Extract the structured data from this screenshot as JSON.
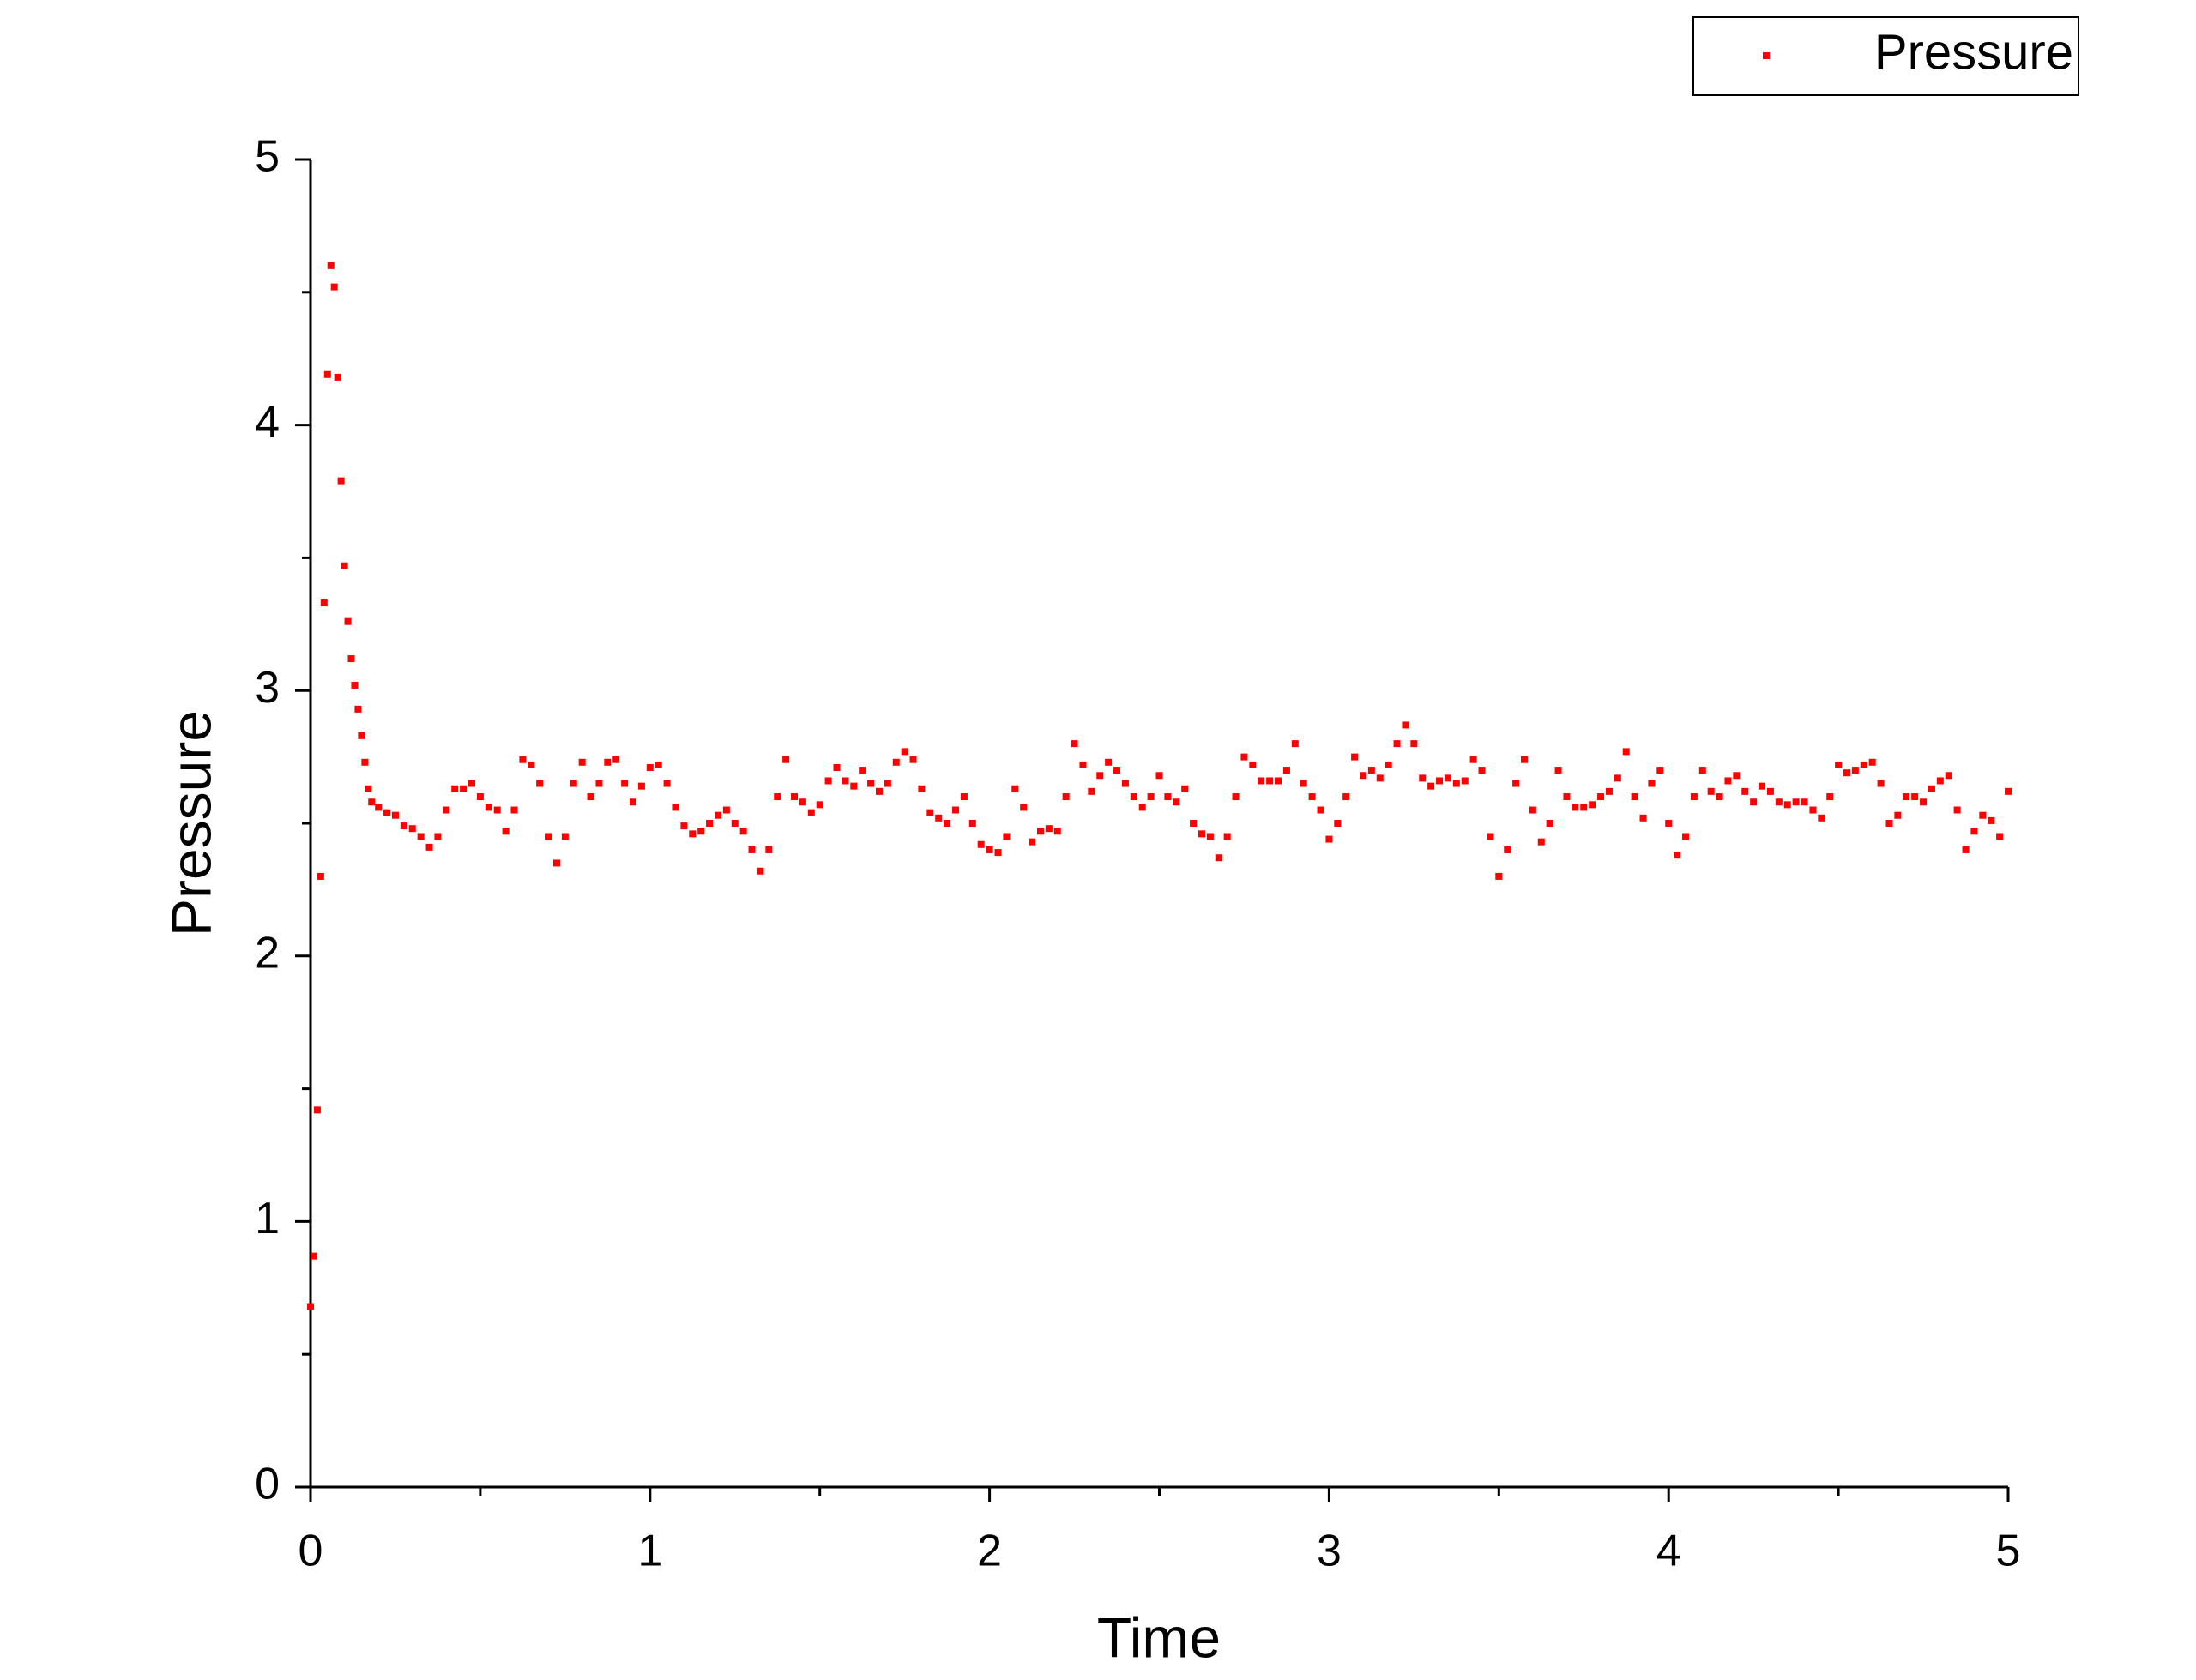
{
  "chart_data": {
    "type": "scatter",
    "x_label": "Time",
    "y_label": "Pressure",
    "xlim": [
      0,
      5
    ],
    "ylim": [
      0,
      5
    ],
    "xticks": [
      0,
      1,
      2,
      3,
      4,
      5
    ],
    "yticks": [
      0,
      1,
      2,
      3,
      4,
      5
    ],
    "minor_xticks": [
      0.5,
      1.5,
      2.5,
      3.5,
      4.5
    ],
    "minor_yticks": [
      0.5,
      1.5,
      2.5,
      3.5,
      4.5
    ],
    "legend": "top-right",
    "series": [
      {
        "name": "Pressure",
        "color": "#ff0000",
        "x": [
          0,
          0.01,
          0.02,
          0.03,
          0.04,
          0.05,
          0.06,
          0.07,
          0.08,
          0.09,
          0.1,
          0.11,
          0.12,
          0.13,
          0.14,
          0.15,
          0.16,
          0.17,
          0.18,
          0.2,
          0.225,
          0.25,
          0.275,
          0.3,
          0.325,
          0.35,
          0.375,
          0.4,
          0.425,
          0.45,
          0.475,
          0.5,
          0.525,
          0.55,
          0.575,
          0.6,
          0.625,
          0.65,
          0.675,
          0.7,
          0.725,
          0.75,
          0.775,
          0.8,
          0.825,
          0.85,
          0.875,
          0.9,
          0.925,
          0.95,
          0.975,
          1.0,
          1.025,
          1.05,
          1.075,
          1.1,
          1.125,
          1.15,
          1.175,
          1.2,
          1.225,
          1.25,
          1.275,
          1.3,
          1.325,
          1.35,
          1.375,
          1.4,
          1.425,
          1.45,
          1.475,
          1.5,
          1.525,
          1.55,
          1.575,
          1.6,
          1.625,
          1.65,
          1.675,
          1.7,
          1.725,
          1.75,
          1.775,
          1.8,
          1.825,
          1.85,
          1.875,
          1.9,
          1.925,
          1.95,
          1.975,
          2.0,
          2.025,
          2.05,
          2.075,
          2.1,
          2.125,
          2.15,
          2.175,
          2.2,
          2.225,
          2.25,
          2.275,
          2.3,
          2.325,
          2.35,
          2.375,
          2.4,
          2.425,
          2.45,
          2.475,
          2.5,
          2.525,
          2.55,
          2.575,
          2.6,
          2.625,
          2.65,
          2.675,
          2.7,
          2.725,
          2.75,
          2.775,
          2.8,
          2.825,
          2.85,
          2.875,
          2.9,
          2.925,
          2.95,
          2.975,
          3.0,
          3.025,
          3.05,
          3.075,
          3.1,
          3.125,
          3.15,
          3.175,
          3.2,
          3.225,
          3.25,
          3.275,
          3.3,
          3.325,
          3.35,
          3.375,
          3.4,
          3.425,
          3.45,
          3.475,
          3.5,
          3.525,
          3.55,
          3.575,
          3.6,
          3.625,
          3.65,
          3.675,
          3.7,
          3.725,
          3.75,
          3.775,
          3.8,
          3.825,
          3.85,
          3.875,
          3.9,
          3.925,
          3.95,
          3.975,
          4.0,
          4.025,
          4.05,
          4.075,
          4.1,
          4.125,
          4.15,
          4.175,
          4.2,
          4.225,
          4.25,
          4.275,
          4.3,
          4.325,
          4.35,
          4.375,
          4.4,
          4.425,
          4.45,
          4.475,
          4.5,
          4.525,
          4.55,
          4.575,
          4.6,
          4.625,
          4.65,
          4.675,
          4.7,
          4.725,
          4.75,
          4.775,
          4.8,
          4.825,
          4.85,
          4.875,
          4.9,
          4.925,
          4.95,
          4.975,
          5.0
        ],
        "values": [
          0.68,
          0.87,
          1.42,
          2.3,
          3.33,
          4.19,
          4.6,
          4.52,
          4.18,
          3.79,
          3.47,
          3.26,
          3.12,
          3.02,
          2.93,
          2.83,
          2.73,
          2.63,
          2.58,
          2.56,
          2.54,
          2.53,
          2.49,
          2.48,
          2.45,
          2.41,
          2.45,
          2.55,
          2.63,
          2.63,
          2.65,
          2.6,
          2.56,
          2.55,
          2.47,
          2.55,
          2.74,
          2.72,
          2.65,
          2.45,
          2.35,
          2.45,
          2.65,
          2.73,
          2.6,
          2.65,
          2.73,
          2.74,
          2.65,
          2.58,
          2.64,
          2.71,
          2.72,
          2.65,
          2.56,
          2.49,
          2.46,
          2.47,
          2.5,
          2.53,
          2.55,
          2.5,
          2.47,
          2.4,
          2.32,
          2.4,
          2.6,
          2.74,
          2.6,
          2.58,
          2.54,
          2.57,
          2.66,
          2.71,
          2.66,
          2.64,
          2.7,
          2.65,
          2.62,
          2.65,
          2.73,
          2.77,
          2.74,
          2.63,
          2.54,
          2.52,
          2.5,
          2.55,
          2.6,
          2.5,
          2.42,
          2.4,
          2.39,
          2.45,
          2.63,
          2.56,
          2.43,
          2.47,
          2.48,
          2.47,
          2.6,
          2.8,
          2.72,
          2.62,
          2.68,
          2.73,
          2.7,
          2.65,
          2.6,
          2.56,
          2.6,
          2.68,
          2.6,
          2.58,
          2.63,
          2.5,
          2.46,
          2.45,
          2.37,
          2.45,
          2.6,
          2.75,
          2.72,
          2.66,
          2.66,
          2.66,
          2.7,
          2.8,
          2.65,
          2.6,
          2.55,
          2.44,
          2.5,
          2.6,
          2.75,
          2.68,
          2.7,
          2.67,
          2.72,
          2.8,
          2.87,
          2.8,
          2.67,
          2.64,
          2.66,
          2.67,
          2.65,
          2.66,
          2.74,
          2.7,
          2.45,
          2.3,
          2.4,
          2.65,
          2.74,
          2.55,
          2.43,
          2.5,
          2.7,
          2.6,
          2.56,
          2.56,
          2.57,
          2.6,
          2.62,
          2.67,
          2.77,
          2.6,
          2.52,
          2.65,
          2.7,
          2.5,
          2.38,
          2.45,
          2.6,
          2.7,
          2.62,
          2.6,
          2.66,
          2.68,
          2.62,
          2.58,
          2.64,
          2.62,
          2.58,
          2.57,
          2.58,
          2.58,
          2.55,
          2.52,
          2.6,
          2.72,
          2.69,
          2.7,
          2.72,
          2.73,
          2.65,
          2.5,
          2.53,
          2.6,
          2.6,
          2.58,
          2.63,
          2.66,
          2.68,
          2.55,
          2.4,
          2.47,
          2.53,
          2.51,
          2.45,
          2.62
        ]
      }
    ]
  }
}
